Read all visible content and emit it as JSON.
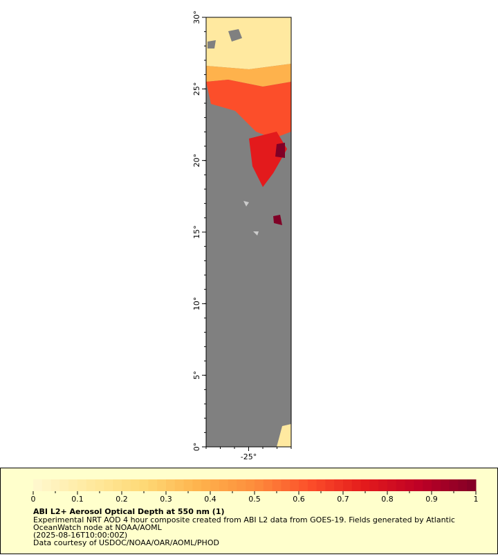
{
  "map": {
    "ylim": [
      0,
      30
    ],
    "yticks": [
      {
        "value": 0,
        "label": "0°"
      },
      {
        "value": 5,
        "label": "5°"
      },
      {
        "value": 10,
        "label": "10°"
      },
      {
        "value": 15,
        "label": "15°"
      },
      {
        "value": 20,
        "label": "20°"
      },
      {
        "value": 25,
        "label": "25°"
      },
      {
        "value": 30,
        "label": "30°"
      }
    ],
    "xlim": [
      -28,
      -22
    ],
    "xticks": [
      {
        "value": -25,
        "label": "-25°"
      }
    ]
  },
  "legend": {
    "title": "ABI L2+ Aerosol Optical Depth at 550 nm (1)",
    "colorbar": {
      "range": [
        0,
        1
      ],
      "ticks": [
        0,
        0.1,
        0.2,
        0.3,
        0.4,
        0.5,
        0.6,
        0.7,
        0.8,
        0.9,
        1
      ],
      "colors": [
        "#fff8d0",
        "#ffeaa0",
        "#fed976",
        "#feb24c",
        "#fd8d3c",
        "#fc4e2a",
        "#e31a1c",
        "#bd0026",
        "#800026"
      ]
    },
    "notes": [
      "Experimental NRT AOD 4 hour composite created from ABI L2 data from GOES-19. Fields generated by Atlantic",
      "OceanWatch node at NOAA/AOML",
      "(2025-08-16T10:00:00Z)",
      "Data courtesy of USDOC/NOAA/OAR/AOML/PHOD"
    ]
  }
}
